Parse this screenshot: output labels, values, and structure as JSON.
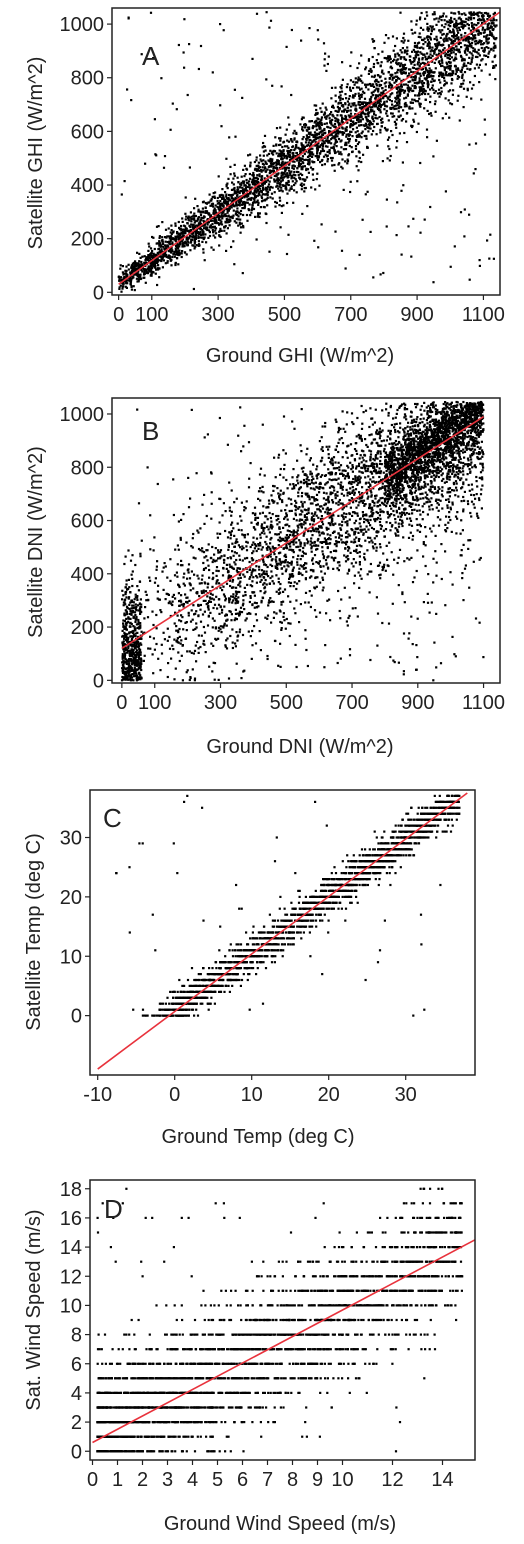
{
  "colors": {
    "points": "#000000",
    "fit_line": "#e8323c",
    "frame": "#222222"
  },
  "chart_data": [
    {
      "type": "scatter",
      "letter": "A",
      "xlabel": "Ground GHI (W/m^2)",
      "ylabel": "Satellite GHI (W/m^2)",
      "xlim": [
        -20,
        1150
      ],
      "ylim": [
        -10,
        1060
      ],
      "xticks": [
        0,
        100,
        300,
        500,
        700,
        900,
        1100
      ],
      "yticks": [
        0,
        200,
        400,
        600,
        800,
        1000
      ],
      "fit_line": {
        "x": [
          0,
          1150
        ],
        "y": [
          30,
          1045
        ]
      },
      "point_cloud": {
        "n": 4000,
        "x_range": [
          0,
          1140
        ],
        "y_max": 1045,
        "x_skew": 0.9,
        "spread": 22,
        "spread_growth": 0.035,
        "outlier_rate": 0.06,
        "points_shown": 4000
      }
    },
    {
      "type": "scatter",
      "letter": "B",
      "xlabel": "Ground DNI (W/m^2)",
      "ylabel": "Satellite DNI (W/m^2)",
      "xlim": [
        -30,
        1150
      ],
      "ylim": [
        -10,
        1060
      ],
      "xticks": [
        0,
        100,
        300,
        500,
        700,
        900,
        1100
      ],
      "yticks": [
        0,
        200,
        400,
        600,
        800,
        1000
      ],
      "fit_line": {
        "x": [
          0,
          1100
        ],
        "y": [
          120,
          990
        ]
      },
      "point_cloud": {
        "n": 3800,
        "x_range": [
          0,
          1100
        ],
        "y_max": 1045,
        "x_skew": 0.6,
        "spread": 150,
        "spread_growth": 0.0,
        "outlier_rate": 0.08,
        "high_cluster": {
          "n": 1300,
          "x": [
            800,
            1100
          ],
          "y": [
            750,
            1040
          ]
        },
        "low_cluster": {
          "n": 500,
          "x": [
            0,
            60
          ],
          "y": [
            0,
            420
          ]
        }
      }
    },
    {
      "type": "scatter",
      "letter": "C",
      "xlabel": "Ground Temp (deg C)",
      "ylabel": "Satellite Temp (deg C)",
      "xlim": [
        -11,
        39
      ],
      "ylim": [
        -10,
        38
      ],
      "xticks": [
        -10,
        0,
        10,
        20,
        30
      ],
      "yticks": [
        0,
        10,
        20,
        30
      ],
      "fit_line": {
        "x": [
          -10,
          38
        ],
        "y": [
          -9,
          37.5
        ]
      },
      "point_cloud": {
        "n": 2600,
        "x_range": [
          -8,
          37
        ],
        "y_max": 37,
        "x_skew": 1.0,
        "spread": 1.6,
        "spread_growth": 0.0,
        "outlier_rate": 0.02,
        "y_step": 1
      }
    },
    {
      "type": "scatter",
      "letter": "D",
      "xlabel": "Ground Wind Speed (m/s)",
      "ylabel": "Sat. Wind Speed (m/s)",
      "xlim": [
        -0.1,
        15.3
      ],
      "ylim": [
        -0.6,
        18.6
      ],
      "xticks": [
        0,
        1,
        2,
        3,
        4,
        5,
        6,
        7,
        8,
        9,
        10,
        12,
        14
      ],
      "yticks": [
        0,
        2,
        4,
        6,
        8,
        10,
        12,
        14,
        16,
        18
      ],
      "fit_line": {
        "x": [
          0,
          15.3
        ],
        "y": [
          0.6,
          14.5
        ]
      },
      "point_cloud": {
        "n": 3000,
        "x_range": [
          0.2,
          14.8
        ],
        "y_max": 18,
        "x_skew": 1.6,
        "spread": 2.4,
        "spread_growth": 0.0,
        "outlier_rate": 0.02,
        "y_step": 1
      }
    }
  ]
}
